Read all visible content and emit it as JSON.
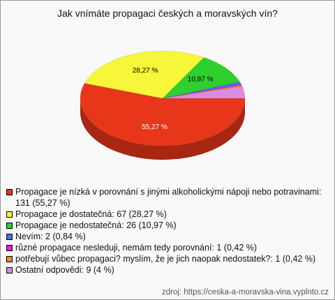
{
  "chart_data": {
    "type": "pie3d",
    "title": "Jak vnímáte propagaci českých a moravských vín?",
    "series": [
      {
        "name": "Propagace je nízká v porovnání s jinými alkoholickými nápoji nebo potravinami: 131 (55,27 %)",
        "color": "#e8361b"
      },
      {
        "name": "Propagace je dostatečná: 67 (28,27 %)",
        "color": "#f6f63a"
      },
      {
        "name": "Propagace je nedostatečná: 26 (10,97 %)",
        "color": "#2fcf2f"
      },
      {
        "name": "Nevím: 2 (0,84 %)",
        "color": "#4a6ef2"
      },
      {
        "name": "různé propagace nesleduji, nemám tedy porovnání: 1 (0,42 %)",
        "color": "#e21fe2"
      },
      {
        "name": "potřebují vůbec propagaci? myslím, že je jich naopak nedostatek?: 1 (0,42 %)",
        "color": "#ff8a1c"
      },
      {
        "name": "Ostatní odpovědi: 9 (4 %)",
        "color": "#d98cdf"
      }
    ],
    "values": [
      55.27,
      28.27,
      10.97,
      0.84,
      0.42,
      0.42,
      4
    ],
    "value_labels": [
      "55,27 %",
      "28,27 %",
      "10,97 %",
      null,
      null,
      null,
      null
    ],
    "source": "zdroj: https://ceska-a-moravska-vina.vyplnto.cz"
  }
}
